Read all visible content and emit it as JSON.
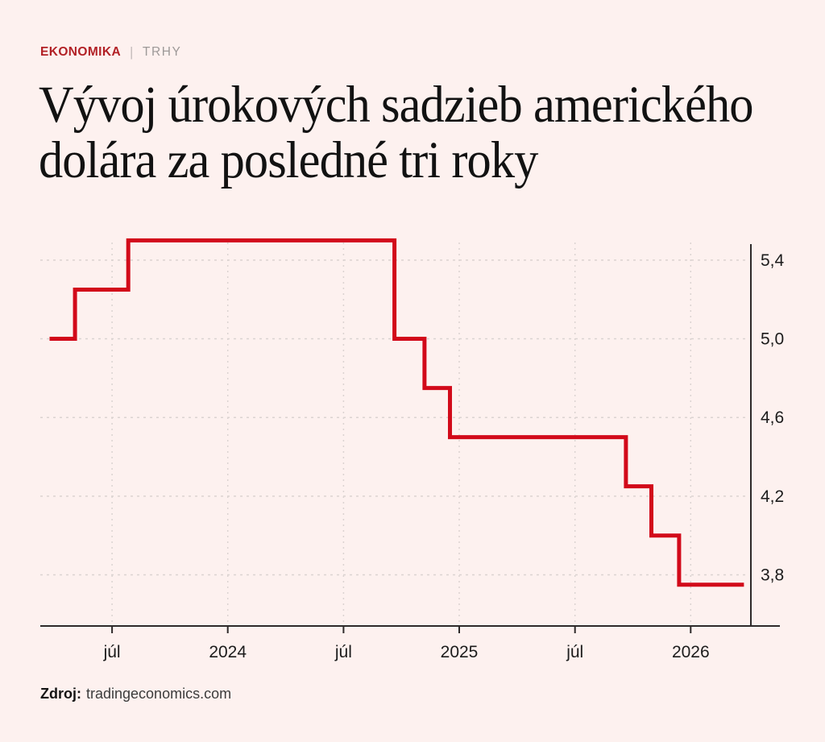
{
  "kicker": {
    "category": "EKONOMIKA",
    "separator": "|",
    "section": "TRHY",
    "category_color": "#b22126",
    "section_color": "#9d9998"
  },
  "title_lines": [
    "Vývoj úrokových sadzieb amerického",
    "dolára za posledné tri roky"
  ],
  "source": {
    "label": "Zdroj:",
    "value": "tradingeconomics.com"
  },
  "chart_data": {
    "type": "line",
    "line_style": "step-after",
    "title": "Vývoj úrokových sadzieb amerického dolára za posledné tri roky",
    "xlabel": "",
    "ylabel": "",
    "y_unit": "%",
    "x_unit": "decimal_year",
    "x": [
      2023.23,
      2023.34,
      2023.57,
      2024.72,
      2024.85,
      2024.96,
      2025.72,
      2025.83,
      2025.95
    ],
    "y": [
      5.0,
      5.25,
      5.5,
      5.0,
      4.75,
      4.5,
      4.25,
      4.0,
      3.75
    ],
    "x_end": 2026.23,
    "xlim": [
      2023.19,
      2026.26
    ],
    "ylim": [
      3.54,
      5.51
    ],
    "xticks": [
      {
        "x": 2023.5,
        "label": "júl"
      },
      {
        "x": 2024.0,
        "label": "2024"
      },
      {
        "x": 2024.5,
        "label": "júl"
      },
      {
        "x": 2025.0,
        "label": "2025"
      },
      {
        "x": 2025.5,
        "label": "júl"
      },
      {
        "x": 2026.0,
        "label": "2026"
      }
    ],
    "yticks": [
      {
        "y": 5.4,
        "label": "5,4"
      },
      {
        "y": 5.0,
        "label": "5,0"
      },
      {
        "y": 4.6,
        "label": "4,6"
      },
      {
        "y": 4.2,
        "label": "4,2"
      },
      {
        "y": 3.8,
        "label": "3,8"
      }
    ],
    "grid": "dashed",
    "legend": "none",
    "colors": {
      "line": "#d20a1a",
      "axis": "#2e2a2a",
      "grid": "#dbd3d1",
      "tick_label": "#1c1c1c",
      "background": "#fdf1ef"
    }
  }
}
